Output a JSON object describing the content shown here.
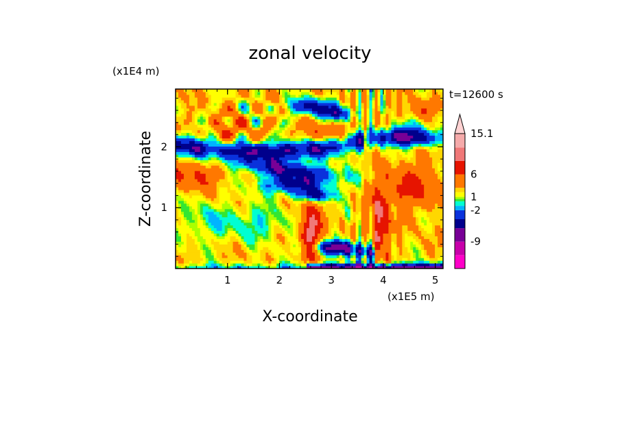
{
  "chart_data": {
    "type": "heatmap",
    "title": "zonal velocity",
    "xlabel": "X-coordinate",
    "ylabel": "Z-coordinate",
    "x_unit": "(x1E5 m)",
    "y_unit": "(x1E4 m)",
    "time_label": "t=12600 s",
    "xlim": [
      0,
      5.15
    ],
    "ylim": [
      0,
      2.95
    ],
    "x_ticks": [
      "1",
      "2",
      "3",
      "4",
      "5"
    ],
    "y_ticks": [
      "1",
      "2"
    ],
    "x_tick_values": [
      1,
      2,
      3,
      4,
      5
    ],
    "y_tick_values": [
      1,
      2
    ],
    "colorbar": {
      "labels": [
        "15.1",
        "6",
        "1",
        "-2",
        "-9"
      ],
      "label_values": [
        15.1,
        6,
        1,
        -2,
        -9
      ],
      "min_estimate": -15,
      "max_estimate": 18,
      "extend": "max",
      "levels": [
        {
          "upper": -12,
          "color": "#ff00c8"
        },
        {
          "upper": -9,
          "color": "#c800aa"
        },
        {
          "upper": -6,
          "color": "#780096"
        },
        {
          "upper": -4,
          "color": "#00008c"
        },
        {
          "upper": -2,
          "color": "#0a32dc"
        },
        {
          "upper": -1,
          "color": "#00b4ff"
        },
        {
          "upper": 0,
          "color": "#00ffd2"
        },
        {
          "upper": 0.5,
          "color": "#32e632"
        },
        {
          "upper": 1,
          "color": "#aaff00"
        },
        {
          "upper": 2,
          "color": "#ffff00"
        },
        {
          "upper": 3,
          "color": "#ffd700"
        },
        {
          "upper": 6,
          "color": "#ff7800"
        },
        {
          "upper": 9,
          "color": "#e61400"
        },
        {
          "upper": 12,
          "color": "#f07878"
        },
        {
          "upper": 15.1,
          "color": "#f5aaaa"
        },
        {
          "upper": 18,
          "color": "#ffd2d2"
        }
      ]
    }
  }
}
